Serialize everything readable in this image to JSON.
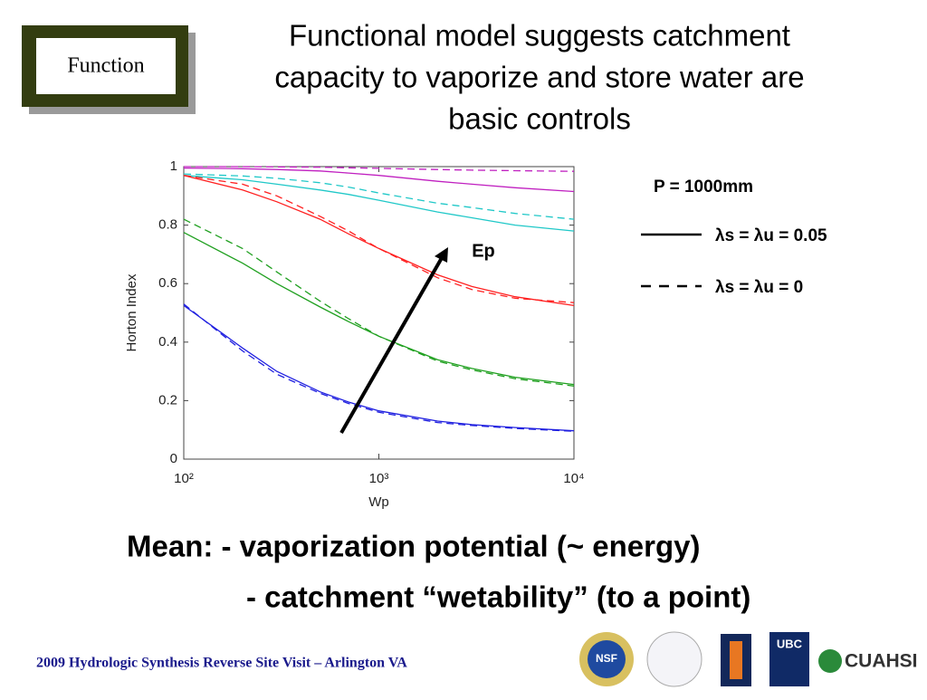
{
  "slide": {
    "badge": "Function",
    "title_lines": [
      "Functional model suggests catchment",
      "capacity to vaporize and store water are",
      "basic controls"
    ],
    "notes": [
      "Mean:  - vaporization potential (~ energy)",
      "- catchment “wetability” (to a point)"
    ],
    "footer": "2009 Hydrologic Synthesis Reverse Site Visit – Arlington VA",
    "logos": [
      "NSF",
      "UBC",
      "CUAHSI"
    ]
  },
  "chart_data": {
    "type": "line",
    "xlabel": "Wp",
    "ylabel": "Horton Index",
    "xscale": "log",
    "xlim": [
      100,
      10000
    ],
    "ylim": [
      0,
      1
    ],
    "xticks": [
      {
        "value": 100,
        "label": "10²"
      },
      {
        "value": 1000,
        "label": "10³"
      },
      {
        "value": 10000,
        "label": "10⁴"
      }
    ],
    "yticks": [
      0,
      0.2,
      0.4,
      0.6,
      0.8,
      1
    ],
    "x": [
      100,
      200,
      300,
      500,
      700,
      1000,
      2000,
      3000,
      5000,
      10000
    ],
    "series": [
      {
        "color": "#c020c0",
        "dashed": false,
        "values": [
          0.995,
          0.993,
          0.99,
          0.985,
          0.978,
          0.97,
          0.95,
          0.94,
          0.928,
          0.915
        ]
      },
      {
        "color": "#c020c0",
        "dashed": true,
        "values": [
          1.0,
          1.0,
          0.999,
          0.998,
          0.996,
          0.994,
          0.99,
          0.988,
          0.986,
          0.984
        ]
      },
      {
        "color": "#20c8c8",
        "dashed": false,
        "values": [
          0.97,
          0.955,
          0.94,
          0.92,
          0.905,
          0.885,
          0.845,
          0.825,
          0.8,
          0.78
        ]
      },
      {
        "color": "#20c8c8",
        "dashed": true,
        "values": [
          0.975,
          0.968,
          0.96,
          0.945,
          0.93,
          0.91,
          0.875,
          0.86,
          0.84,
          0.82
        ]
      },
      {
        "color": "#ff2020",
        "dashed": false,
        "values": [
          0.97,
          0.92,
          0.88,
          0.82,
          0.77,
          0.72,
          0.63,
          0.59,
          0.555,
          0.525
        ]
      },
      {
        "color": "#ff2020",
        "dashed": true,
        "values": [
          0.97,
          0.94,
          0.9,
          0.83,
          0.78,
          0.72,
          0.62,
          0.58,
          0.55,
          0.535
        ]
      },
      {
        "color": "#20a020",
        "dashed": false,
        "values": [
          0.775,
          0.67,
          0.6,
          0.52,
          0.47,
          0.42,
          0.34,
          0.31,
          0.28,
          0.255
        ]
      },
      {
        "color": "#20a020",
        "dashed": true,
        "values": [
          0.82,
          0.72,
          0.64,
          0.54,
          0.48,
          0.42,
          0.335,
          0.305,
          0.275,
          0.25
        ]
      },
      {
        "color": "#2020e0",
        "dashed": false,
        "values": [
          0.525,
          0.38,
          0.3,
          0.23,
          0.195,
          0.165,
          0.13,
          0.118,
          0.108,
          0.097
        ]
      },
      {
        "color": "#2020e0",
        "dashed": true,
        "values": [
          0.53,
          0.37,
          0.29,
          0.225,
          0.19,
          0.16,
          0.125,
          0.115,
          0.105,
          0.095
        ]
      }
    ],
    "annotation": "Ep",
    "legend_title": "P = 1000mm",
    "legend": [
      {
        "label": "λs = λu = 0.05",
        "dashed": false
      },
      {
        "label": "λs = λu = 0",
        "dashed": true
      }
    ]
  }
}
